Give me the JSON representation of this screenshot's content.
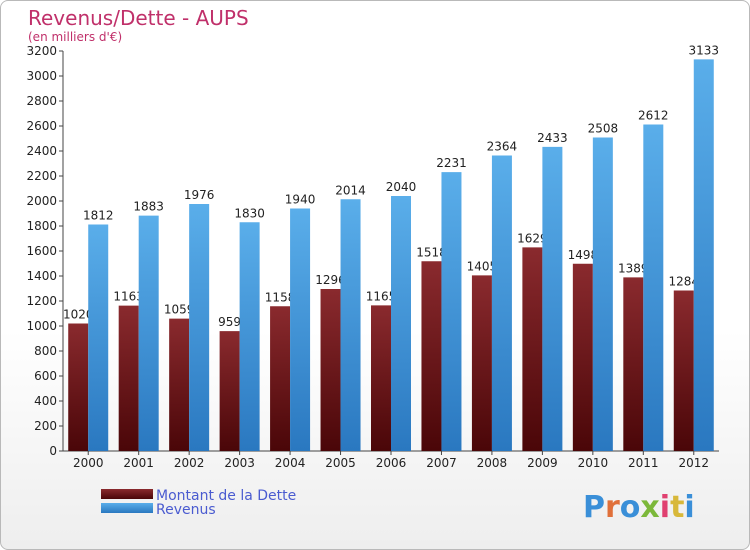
{
  "chart_data": {
    "type": "bar",
    "title": "Revenus/Dette - AUPS",
    "subtitle": "(en milliers d'€)",
    "categories": [
      "2000",
      "2001",
      "2002",
      "2003",
      "2004",
      "2005",
      "2006",
      "2007",
      "2008",
      "2009",
      "2010",
      "2011",
      "2012"
    ],
    "series": [
      {
        "name": "Montant de la Dette",
        "color": "#7a1a1f",
        "values": [
          1020,
          1163,
          1059,
          959,
          1158,
          1296,
          1165,
          1518,
          1405,
          1629,
          1498,
          1389,
          1284
        ]
      },
      {
        "name": "Revenus",
        "color": "#4fa3e0",
        "values": [
          1812,
          1883,
          1976,
          1830,
          1940,
          2014,
          2040,
          2231,
          2364,
          2433,
          2508,
          2612,
          3133
        ]
      }
    ],
    "ylim": [
      0,
      3200
    ],
    "ytick_step": 200,
    "grid": false,
    "legend_position": "bottom-left"
  },
  "watermark": {
    "text": "Proxiti",
    "letter_colors": [
      "#3a8fd8",
      "#e0703a",
      "#3a8fd8",
      "#7cb83a",
      "#e04070",
      "#d8b83a",
      "#3a8fd8"
    ]
  }
}
